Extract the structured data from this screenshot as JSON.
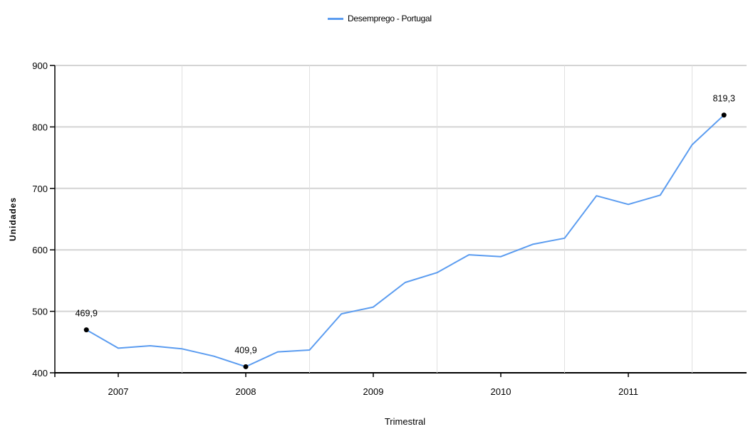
{
  "chart_data": {
    "type": "line",
    "title": "",
    "xlabel": "Trimestral",
    "ylabel": "Unidades",
    "ylim": [
      400,
      900
    ],
    "yticks": [
      400,
      500,
      600,
      700,
      800,
      900
    ],
    "xticks": [
      "2007",
      "2008",
      "2009",
      "2010",
      "2011"
    ],
    "grid": true,
    "legend_position": "top-center",
    "series": [
      {
        "name": "Desemprego - Portugal",
        "color": "#5b9cf0",
        "x": [
          "2006-Q4",
          "2007-Q1",
          "2007-Q2",
          "2007-Q3",
          "2007-Q4",
          "2008-Q1",
          "2008-Q2",
          "2008-Q3",
          "2008-Q4",
          "2009-Q1",
          "2009-Q2",
          "2009-Q3",
          "2009-Q4",
          "2010-Q1",
          "2010-Q2",
          "2010-Q3",
          "2010-Q4",
          "2011-Q1",
          "2011-Q2",
          "2011-Q3",
          "2011-Q4"
        ],
        "values": [
          469.9,
          440,
          444,
          439,
          427,
          409.9,
          434,
          437,
          496,
          507,
          547,
          563,
          592,
          589,
          609,
          619,
          688,
          674,
          689,
          771,
          819.3
        ]
      }
    ],
    "annotations": [
      {
        "index": 0,
        "text": "469,9"
      },
      {
        "index": 5,
        "text": "409,9"
      },
      {
        "index": 20,
        "text": "819,3"
      }
    ]
  }
}
